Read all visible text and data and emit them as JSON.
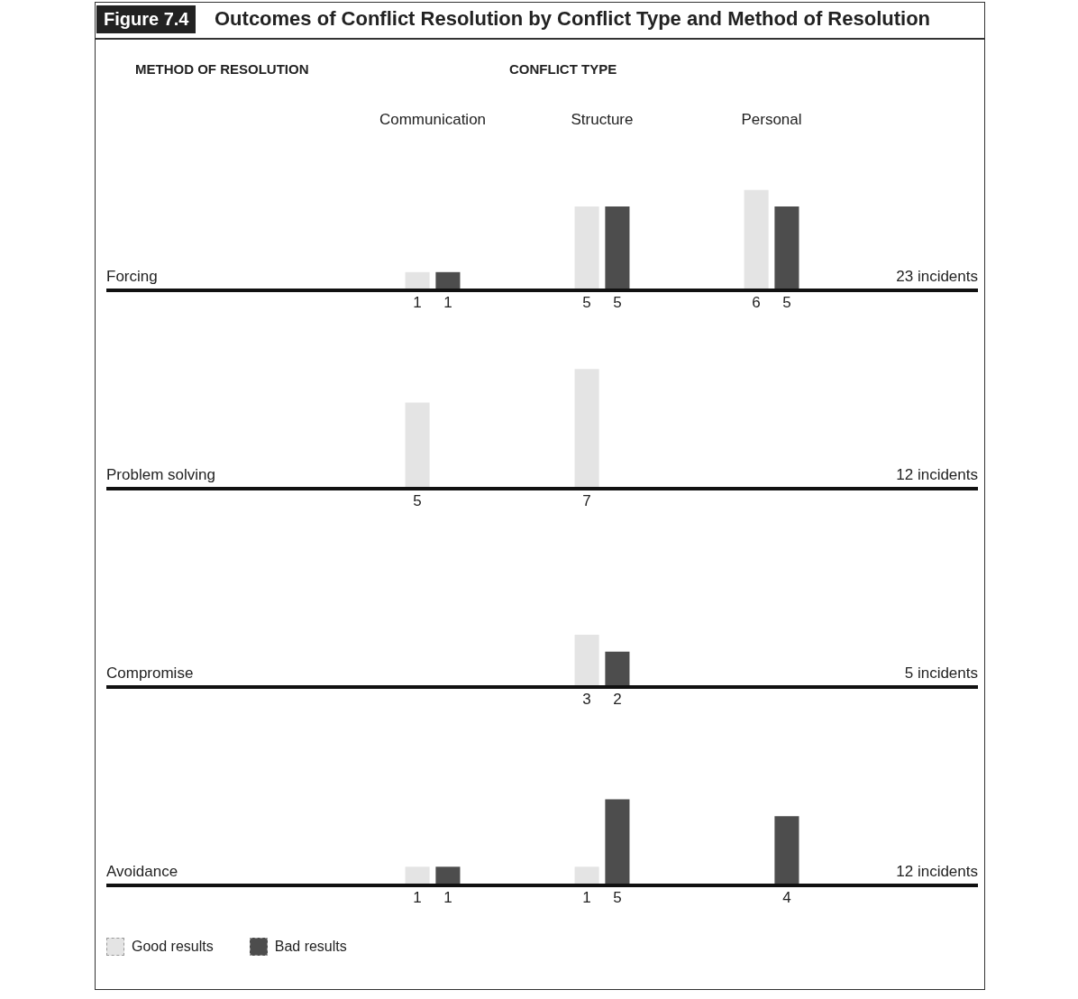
{
  "chart_data": [
    {
      "type": "bar",
      "title": "Outcomes of Conflict Resolution by Conflict Type and Method of Resolution",
      "xlabel": "CONFLICT TYPE",
      "ylabel": "Forcing",
      "annotations": [
        "Figure 7.4",
        "METHOD OF RESOLUTION",
        "23 incidents"
      ],
      "categories": [
        "Communication",
        "Structure",
        "Personal"
      ],
      "tick_labels": "x",
      "data_labels": true,
      "series": [
        {
          "color": "#e4e4e4",
          "values": [
            1,
            5,
            6
          ]
        },
        {
          "color": "#4d4d4d",
          "values": [
            1,
            5,
            5
          ]
        }
      ]
    },
    {
      "type": "bar",
      "ylabel": "Problem solving",
      "annotations": [
        "12 incidents"
      ],
      "categories": [
        null,
        null,
        null
      ],
      "tick_labels": false,
      "data_labels": true,
      "series": [
        {
          "color": "#e4e4e4",
          "values": [
            5,
            7,
            null
          ]
        },
        {
          "color": "#4d4d4d",
          "values": [
            null,
            null,
            null
          ]
        }
      ]
    },
    {
      "type": "bar",
      "ylabel": "Compromise",
      "annotations": [
        "5 incidents"
      ],
      "categories": [
        null,
        null,
        null
      ],
      "tick_labels": false,
      "data_labels": true,
      "series": [
        {
          "color": "#e4e4e4",
          "values": [
            null,
            3,
            null
          ]
        },
        {
          "color": "#4d4d4d",
          "values": [
            null,
            2,
            null
          ]
        }
      ]
    },
    {
      "type": "bar",
      "ylabel": "Avoidance",
      "annotations": [
        "12 incidents"
      ],
      "categories": [
        null,
        null,
        null
      ],
      "tick_labels": false,
      "data_labels": true,
      "legend": "bottom left",
      "series": [
        {
          "name": "Good results",
          "color": "#e4e4e4",
          "values": [
            1,
            1,
            null
          ]
        },
        {
          "name": "Bad results",
          "color": "#4d4d4d",
          "values": [
            1,
            5,
            4
          ]
        }
      ]
    }
  ]
}
